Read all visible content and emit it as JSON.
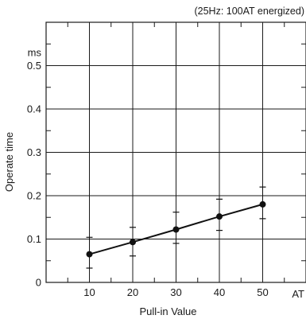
{
  "chart_data": {
    "type": "line",
    "title": "",
    "annotation": "(25Hz: 100AT energized)",
    "xlabel": "Pull-in Value",
    "x_unit": "AT",
    "ylabel": "Operate time",
    "y_unit": "ms",
    "xlim": [
      0,
      60
    ],
    "ylim": [
      0,
      0.6
    ],
    "x_ticks": [
      10,
      20,
      30,
      40,
      50
    ],
    "x_tick_labels": [
      "10",
      "20",
      "30",
      "40",
      "50"
    ],
    "y_ticks": [
      0,
      0.1,
      0.2,
      0.3,
      0.4,
      0.5
    ],
    "y_tick_labels": [
      "0",
      "0.1",
      "0.2",
      "0.3",
      "0.4",
      "0.5"
    ],
    "grid": true,
    "series": [
      {
        "x": [
          10,
          20,
          30,
          40,
          50
        ],
        "y": [
          0.065,
          0.093,
          0.122,
          0.152,
          0.18
        ],
        "y_min": [
          0.033,
          0.061,
          0.09,
          0.12,
          0.147
        ],
        "y_max": [
          0.104,
          0.127,
          0.162,
          0.192,
          0.22
        ],
        "color": "#111111"
      }
    ]
  }
}
